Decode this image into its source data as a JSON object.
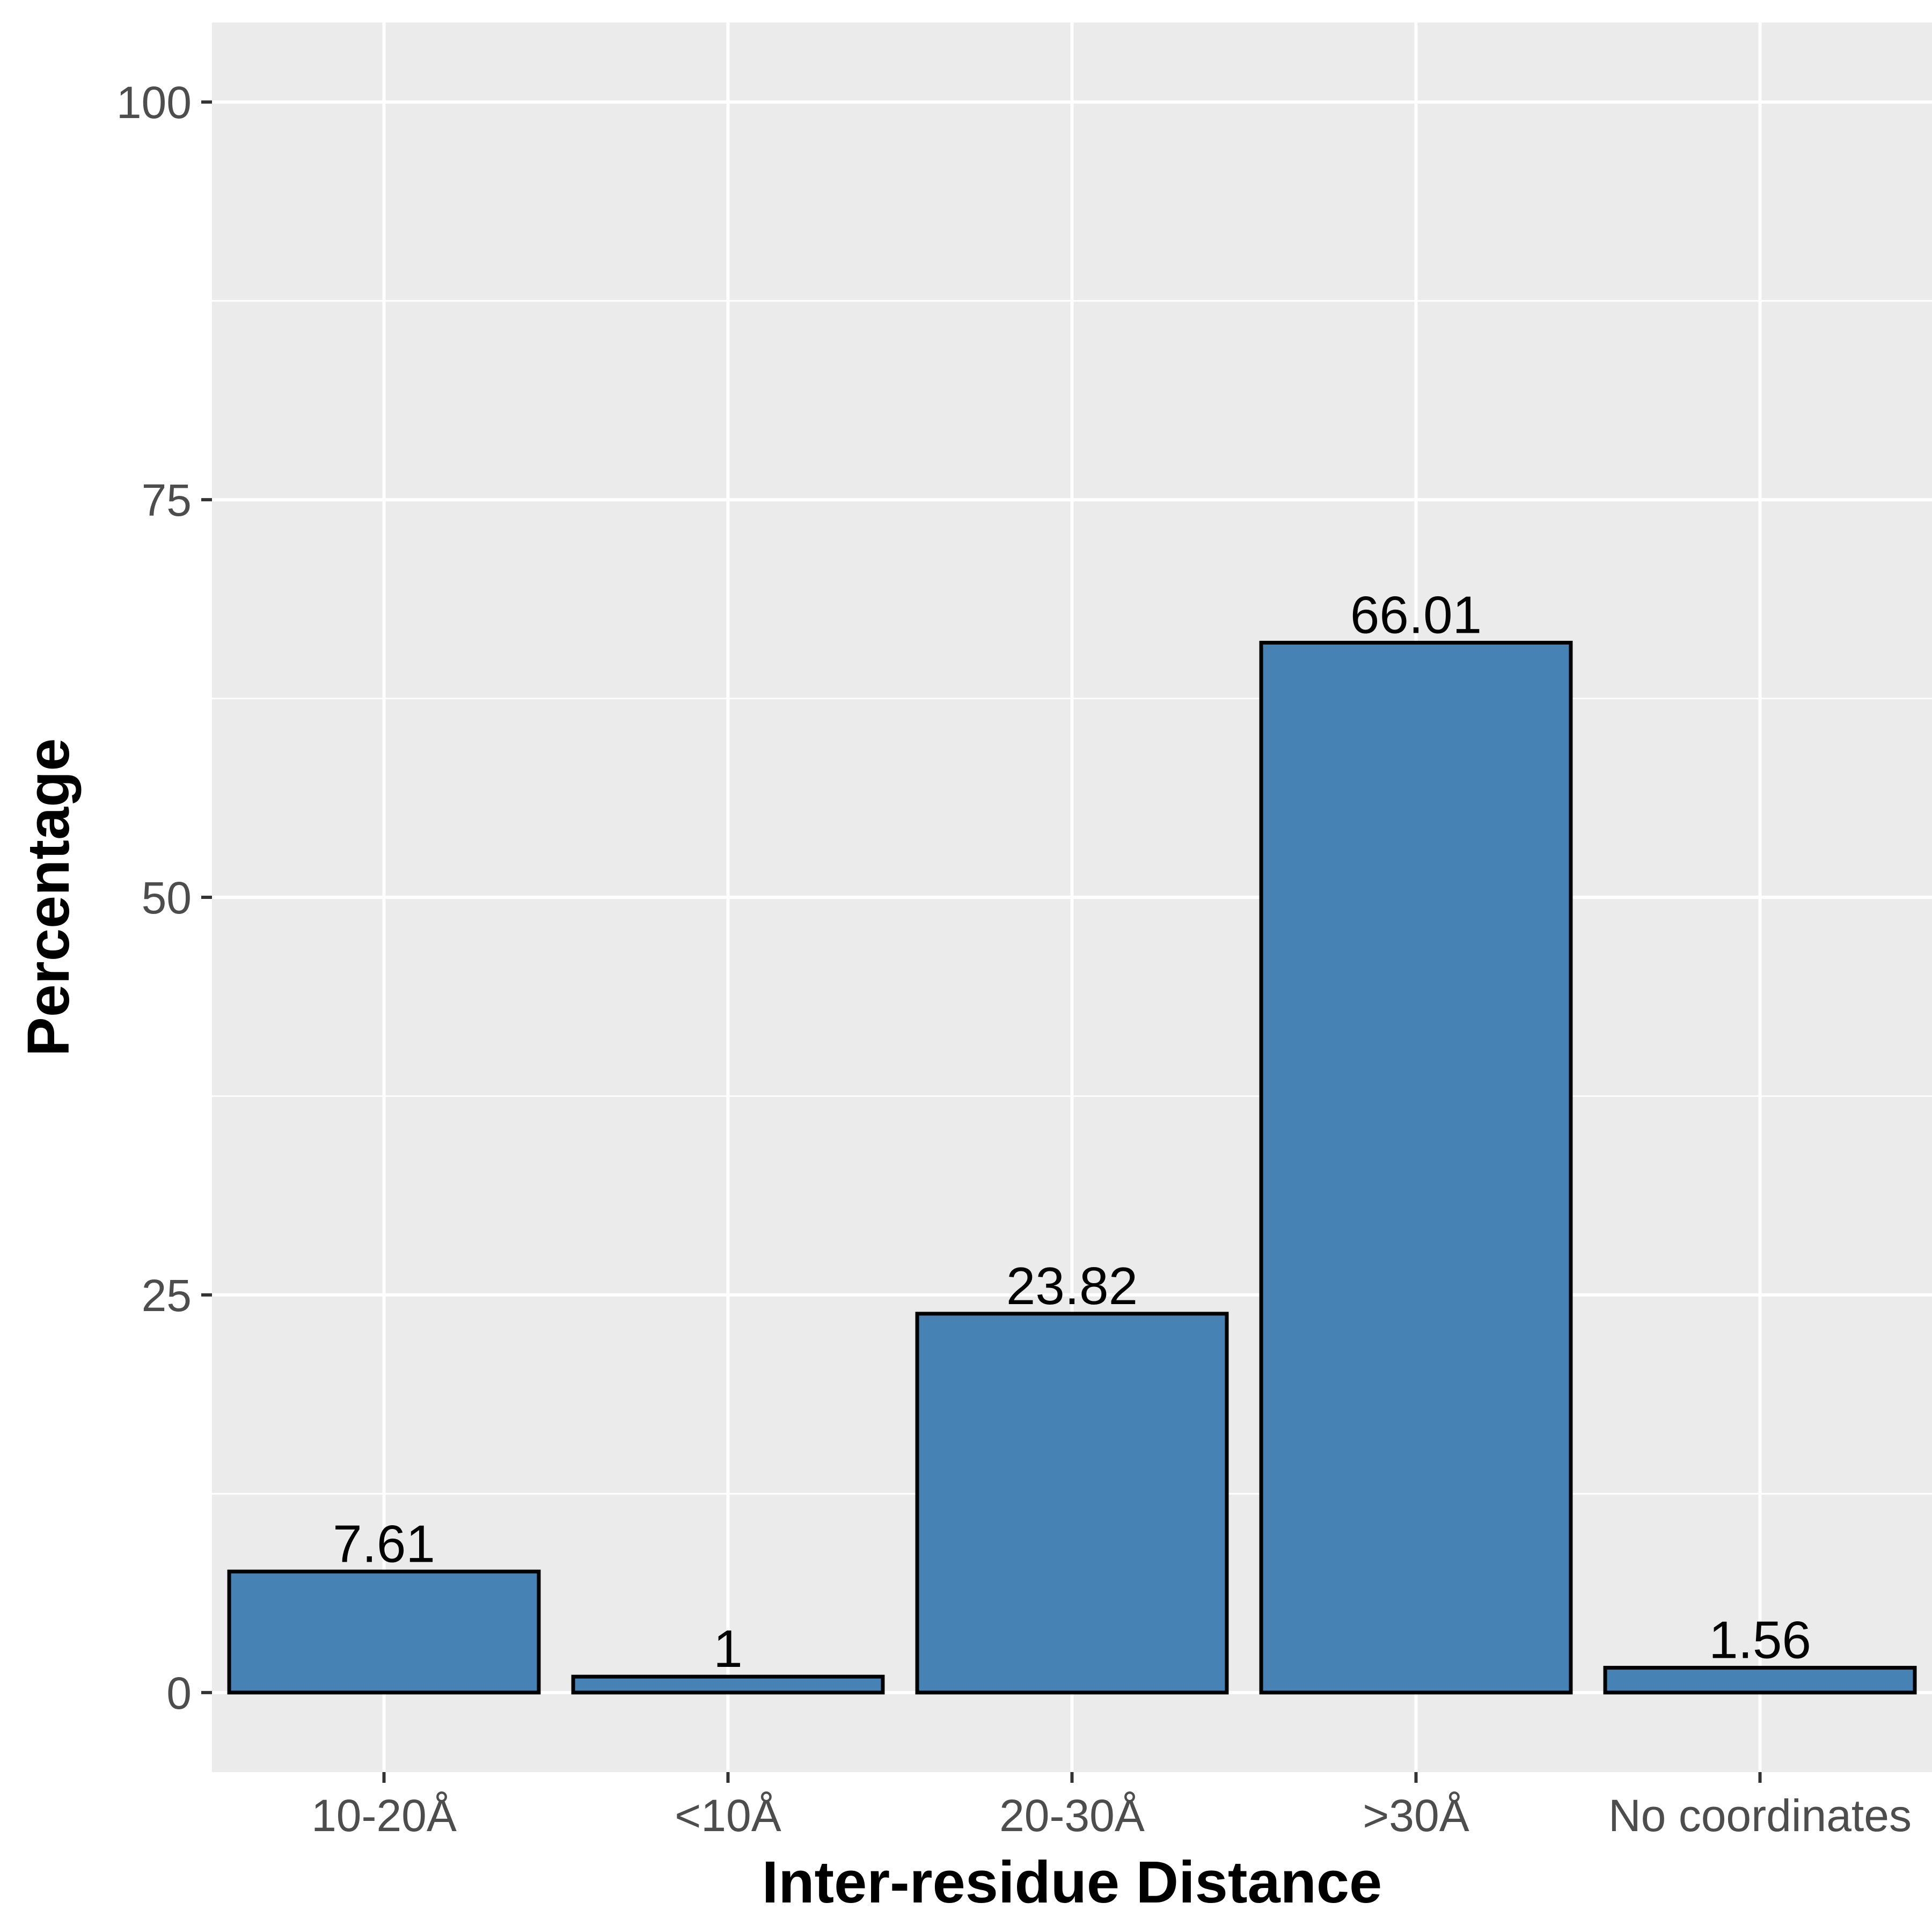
{
  "chart_data": {
    "type": "bar",
    "title": "",
    "xlabel": "Inter-residue Distance",
    "ylabel": "Percentage",
    "categories": [
      "10-20Å",
      "<10Å",
      "20-30Å",
      ">30Å",
      "No coordinates"
    ],
    "values": [
      7.61,
      1,
      23.82,
      66.01,
      1.56
    ],
    "data_labels": [
      "7.61",
      "1",
      "23.82",
      "66.01",
      "1.56"
    ],
    "ylim": [
      -5,
      105
    ],
    "yticks": [
      0,
      25,
      50,
      75,
      100
    ],
    "yticks_minor": [
      12.5,
      37.5,
      62.5,
      87.5
    ],
    "grid": true,
    "legend": "none",
    "colors": {
      "bar_fill": "#4682b4",
      "bar_stroke": "#000000",
      "panel_bg": "#ebebeb",
      "grid": "#ffffff"
    }
  }
}
